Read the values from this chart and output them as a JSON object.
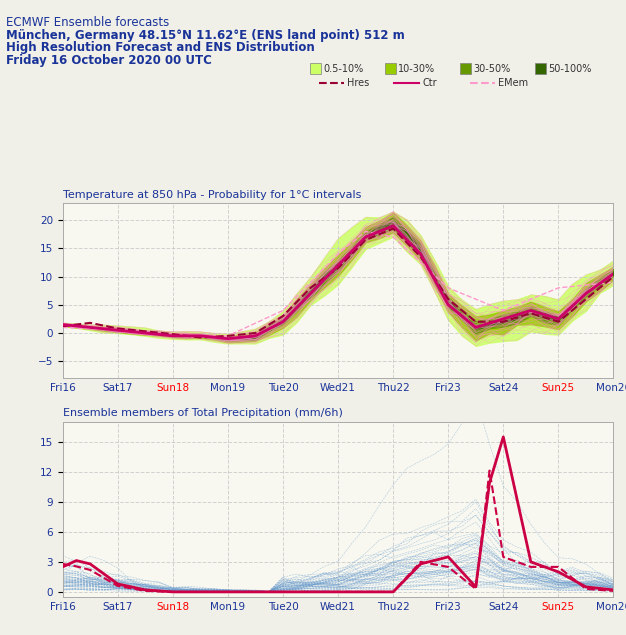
{
  "title_line1": "ECMWF Ensemble forecasts",
  "title_line2": "München, Germany 48.15°N 11.62°E (ENS land point) 512 m",
  "title_line3": "High Resolution Forecast and ENS Distribution",
  "title_line4": "Friday 16 October 2020 00 UTC",
  "legend_colors": {
    "0.5-10%": "#ccff66",
    "10-30%": "#99cc00",
    "30-50%": "#669900",
    "50-100%": "#336600"
  },
  "temp_title": "Temperature at 850 hPa - Probability for 1°C intervals",
  "precip_title": "Ensemble members of Total Precipitation (mm/6h)",
  "header_color": "#1a3399",
  "temp_xlabels": [
    "Fri16",
    "Sat17",
    "Sun18",
    "Mon19",
    "Tue20",
    "Wed21",
    "Thu22",
    "Fri23",
    "Sat24",
    "Sun25",
    "Mon26"
  ],
  "precip_xlabels": [
    "Fri16",
    "Sat17",
    "Sun18",
    "Mon19",
    "Tue20",
    "Wed21",
    "Thu22",
    "Fri23",
    "Sat24",
    "Sun25",
    "Mon26"
  ],
  "sunday_indices": [
    2,
    9
  ],
  "temp_ylim": [
    -8,
    23
  ],
  "temp_yticks": [
    -5,
    0,
    5,
    10,
    15,
    20
  ],
  "precip_ylim": [
    -0.5,
    17
  ],
  "precip_yticks": [
    0,
    3,
    6,
    9,
    12,
    15
  ],
  "bg_color": "#f0f0e8",
  "plot_bg": "#f5f5f0",
  "grid_color": "#c8c8c8",
  "hres_color": "#990033",
  "ctr_color": "#cc0066",
  "emem_color": "#ff99cc",
  "ens_member_color": "#6699cc",
  "hres_precip_color": "#cc0044"
}
